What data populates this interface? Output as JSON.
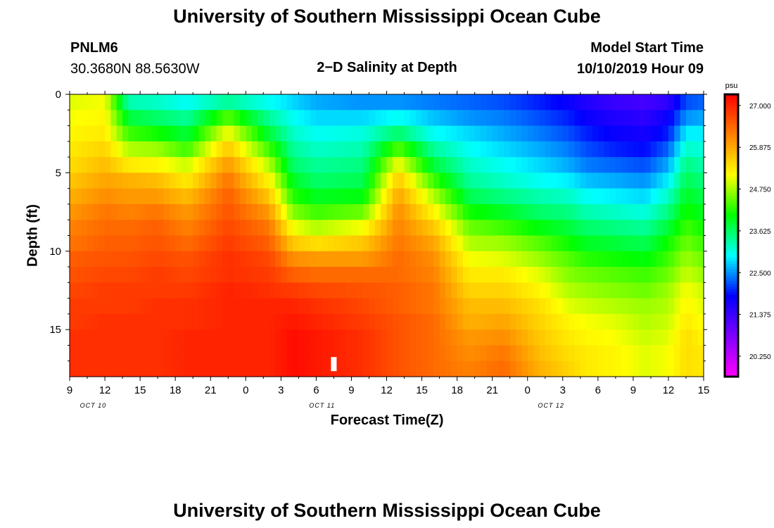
{
  "page": {
    "title_top": "University of Southern Mississippi Ocean Cube",
    "title_bottom": "University of Southern Mississippi Ocean Cube",
    "station_id": "PNLM6",
    "station_coords": "30.3680N 88.5630W",
    "plot_title": "2−D Salinity at Depth",
    "model_start_label": "Model Start Time",
    "model_start_value": "10/10/2019 Hour 09"
  },
  "colors": {
    "scale": [
      "#ff00ff",
      "#8000ff",
      "#0000ff",
      "#00ffff",
      "#00ff00",
      "#ffff00",
      "#ff8000",
      "#ff0000"
    ],
    "highlight": "#ffffff"
  },
  "chart_data": {
    "type": "heatmap",
    "title": "2−D Salinity at Depth",
    "xlabel": "Forecast Time(Z)",
    "ylabel": "Depth (ft)",
    "x_ticks": [
      "9",
      "12",
      "15",
      "18",
      "21",
      "0",
      "3",
      "6",
      "9",
      "12",
      "15",
      "18",
      "21",
      "0",
      "3",
      "6",
      "9",
      "12",
      "15"
    ],
    "date_labels": [
      {
        "text": "OCT 10",
        "hour_index": 4
      },
      {
        "text": "OCT 11",
        "hour_index": 43
      },
      {
        "text": "OCT 12",
        "hour_index": 82
      }
    ],
    "y_ticks": [
      "0",
      "5",
      "10",
      "15"
    ],
    "y_tick_values": [
      0,
      5,
      10,
      15
    ],
    "ylim": [
      0,
      18
    ],
    "hours_total": 108,
    "colorbar": {
      "unit": "psu",
      "min": 19.7,
      "max": 27.3,
      "tick_labels": [
        "27.000",
        "25.875",
        "24.750",
        "23.625",
        "22.500",
        "21.375",
        "20.250"
      ],
      "tick_values": [
        27.0,
        25.875,
        24.75,
        23.625,
        22.5,
        21.375,
        20.25
      ]
    },
    "depth_levels_ft": [
      0.5,
      1.5,
      2.5,
      3.5,
      4.5,
      5.5,
      6.5,
      7.5,
      8.5,
      9.5,
      10.5,
      11.5,
      12.5,
      13.5,
      14.5,
      15.5,
      16.5,
      17.5
    ],
    "profile_time_hours": [
      0,
      6,
      10,
      15,
      20,
      27,
      34,
      38,
      42,
      50,
      56,
      62,
      68,
      74,
      80,
      85,
      88,
      93,
      98,
      102,
      105,
      108
    ],
    "profiles_psu": [
      [
        25.0,
        25.1,
        25.2,
        25.3,
        25.4,
        25.6,
        25.8,
        26.0,
        26.2,
        26.3,
        26.5,
        26.6,
        26.7,
        26.8,
        26.8,
        26.9,
        26.9,
        26.9
      ],
      [
        25.1,
        25.2,
        25.3,
        25.5,
        25.7,
        25.9,
        26.1,
        26.3,
        26.4,
        26.5,
        26.6,
        26.7,
        26.8,
        26.8,
        26.9,
        26.9,
        26.9,
        26.9
      ],
      [
        23.3,
        23.8,
        24.3,
        24.8,
        25.3,
        25.8,
        26.0,
        26.2,
        26.4,
        26.5,
        26.6,
        26.7,
        26.8,
        26.8,
        26.9,
        26.9,
        26.9,
        26.9
      ],
      [
        23.2,
        23.6,
        24.1,
        24.7,
        25.2,
        25.7,
        26.0,
        26.3,
        26.5,
        26.6,
        26.7,
        26.8,
        26.8,
        26.9,
        26.9,
        26.9,
        26.9,
        26.9
      ],
      [
        23.0,
        23.4,
        23.8,
        24.3,
        24.9,
        25.3,
        25.7,
        26.0,
        26.2,
        26.4,
        26.6,
        26.7,
        26.8,
        26.9,
        26.9,
        27.0,
        27.0,
        27.0
      ],
      [
        23.4,
        24.4,
        25.1,
        25.6,
        26.0,
        26.3,
        26.5,
        26.6,
        26.7,
        26.8,
        26.9,
        26.9,
        27.0,
        27.0,
        27.0,
        27.0,
        27.0,
        27.0
      ],
      [
        23.0,
        23.4,
        23.8,
        24.3,
        24.8,
        25.2,
        25.6,
        26.0,
        26.3,
        26.5,
        26.7,
        26.8,
        26.9,
        27.0,
        27.0,
        27.0,
        27.0,
        27.0
      ],
      [
        22.8,
        23.0,
        23.2,
        23.4,
        23.6,
        23.9,
        24.2,
        24.6,
        25.1,
        25.6,
        26.1,
        26.5,
        26.8,
        27.0,
        27.1,
        27.2,
        27.2,
        27.2
      ],
      [
        22.6,
        22.8,
        23.0,
        23.2,
        23.4,
        23.6,
        23.9,
        24.3,
        24.8,
        25.4,
        26.0,
        26.4,
        26.7,
        26.9,
        27.0,
        27.1,
        27.1,
        27.1
      ],
      [
        22.5,
        22.8,
        23.1,
        23.3,
        23.5,
        23.7,
        24.0,
        24.5,
        25.1,
        25.6,
        26.0,
        26.4,
        26.6,
        26.7,
        26.8,
        26.9,
        26.9,
        26.9
      ],
      [
        22.5,
        23.0,
        23.6,
        24.4,
        25.1,
        25.6,
        25.9,
        26.1,
        26.2,
        26.3,
        26.4,
        26.4,
        26.5,
        26.5,
        26.6,
        26.6,
        26.6,
        26.6
      ],
      [
        22.4,
        22.7,
        23.0,
        23.4,
        23.8,
        24.3,
        24.8,
        25.2,
        25.6,
        25.9,
        26.1,
        26.2,
        26.3,
        26.3,
        26.4,
        26.4,
        26.4,
        26.4
      ],
      [
        22.3,
        22.5,
        22.8,
        23.0,
        23.2,
        23.4,
        23.7,
        24.1,
        24.5,
        24.8,
        25.1,
        25.3,
        25.5,
        25.7,
        25.8,
        26.0,
        26.1,
        26.2
      ],
      [
        22.2,
        22.4,
        22.6,
        22.8,
        23.0,
        23.2,
        23.5,
        23.9,
        24.3,
        24.7,
        25.0,
        25.3,
        25.5,
        25.7,
        25.9,
        26.1,
        26.3,
        26.4
      ],
      [
        22.0,
        22.2,
        22.4,
        22.6,
        22.8,
        23.0,
        23.3,
        23.6,
        24.0,
        24.4,
        24.7,
        25.0,
        25.2,
        25.4,
        25.5,
        25.6,
        25.7,
        25.8
      ],
      [
        21.8,
        22.0,
        22.2,
        22.4,
        22.6,
        22.9,
        23.2,
        23.5,
        23.8,
        24.1,
        24.4,
        24.6,
        24.8,
        25.0,
        25.2,
        25.3,
        25.4,
        25.5
      ],
      [
        21.6,
        21.8,
        22.0,
        22.2,
        22.4,
        22.7,
        23.0,
        23.3,
        23.6,
        23.9,
        24.2,
        24.5,
        24.7,
        24.9,
        25.1,
        25.2,
        25.3,
        25.3
      ],
      [
        21.4,
        21.6,
        21.8,
        22.0,
        22.3,
        22.6,
        22.9,
        23.2,
        23.5,
        23.8,
        24.1,
        24.4,
        24.6,
        24.8,
        25.0,
        25.1,
        25.2,
        25.2
      ],
      [
        21.3,
        21.5,
        21.7,
        21.9,
        22.2,
        22.5,
        22.8,
        23.1,
        23.4,
        23.7,
        24.0,
        24.3,
        24.5,
        24.7,
        24.8,
        24.9,
        25.0,
        25.0
      ],
      [
        21.5,
        21.8,
        22.0,
        22.3,
        22.6,
        22.9,
        23.2,
        23.5,
        23.8,
        24.1,
        24.3,
        24.5,
        24.7,
        24.8,
        24.9,
        25.0,
        25.1,
        25.1
      ],
      [
        22.2,
        22.5,
        22.9,
        23.2,
        23.5,
        23.7,
        23.9,
        24.1,
        24.3,
        24.5,
        24.7,
        24.9,
        25.1,
        25.2,
        25.3,
        25.4,
        25.4,
        25.4
      ],
      [
        22.3,
        22.6,
        22.9,
        23.1,
        23.3,
        23.5,
        23.7,
        23.9,
        24.1,
        24.3,
        24.5,
        24.7,
        24.9,
        25.0,
        25.1,
        25.2,
        25.3,
        25.3
      ]
    ],
    "highlight_cell": {
      "hour": 45,
      "depth_ft": 17.2
    }
  }
}
